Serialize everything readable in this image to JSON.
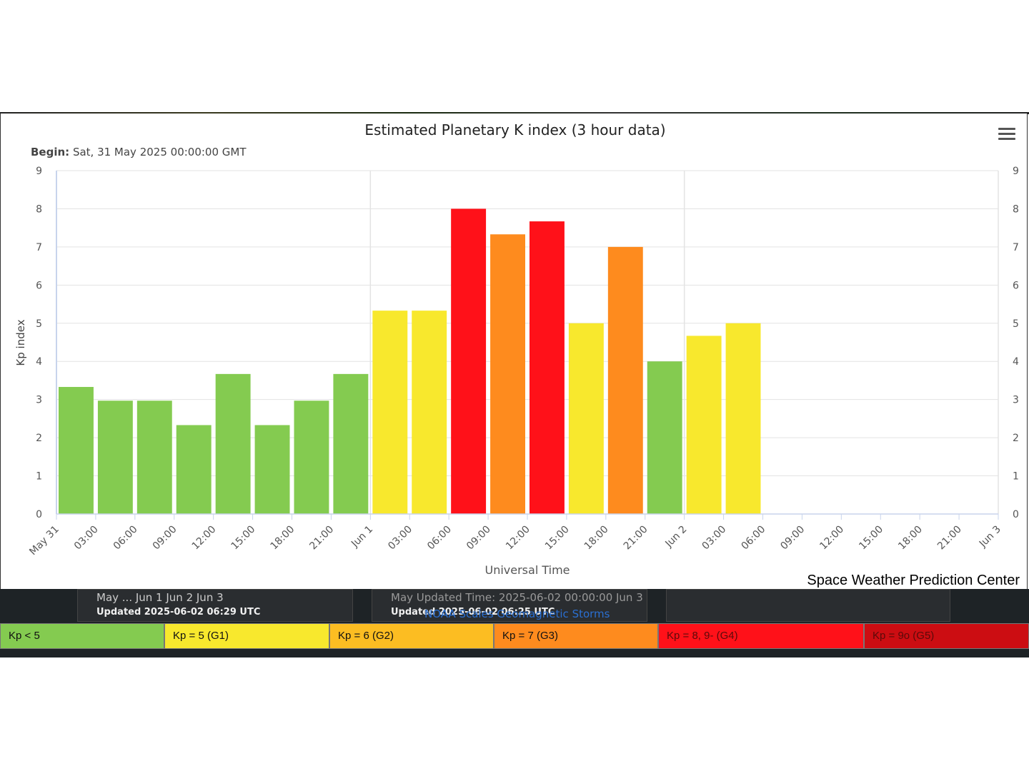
{
  "chart_data": {
    "type": "bar",
    "title": "Estimated Planetary K index (3 hour data)",
    "subtitle_label": "Begin:",
    "subtitle_value": " Sat, 31 May 2025 00:00:00 GMT",
    "ylabel": "Kp index",
    "xlabel": "Universal Time",
    "ylim": [
      0,
      9
    ],
    "yticks": [
      "0",
      "1",
      "2",
      "3",
      "4",
      "5",
      "6",
      "7",
      "8",
      "9"
    ],
    "xticks": [
      "May 31",
      "03:00",
      "06:00",
      "09:00",
      "12:00",
      "15:00",
      "18:00",
      "21:00",
      "Jun 1",
      "03:00",
      "06:00",
      "09:00",
      "12:00",
      "15:00",
      "18:00",
      "21:00",
      "Jun 2",
      "03:00",
      "06:00",
      "09:00",
      "12:00",
      "15:00",
      "18:00",
      "21:00",
      "Jun 3"
    ],
    "grid": true,
    "values": [
      3.33,
      2.97,
      2.97,
      2.33,
      3.67,
      2.33,
      2.97,
      3.67,
      5.33,
      5.33,
      8.0,
      7.33,
      7.67,
      5.0,
      7.0,
      4.0,
      4.67,
      5.0
    ],
    "colors": [
      "#84cb50",
      "#84cb50",
      "#84cb50",
      "#84cb50",
      "#84cb50",
      "#84cb50",
      "#84cb50",
      "#84cb50",
      "#f8e82d",
      "#f8e82d",
      "#ff1119",
      "#fe8b1e",
      "#ff1119",
      "#f8e82d",
      "#fe8b1e",
      "#84cb50",
      "#f8e82d",
      "#f8e82d"
    ],
    "credit": "Space Weather Prediction Center"
  },
  "background": {
    "panel1_dates": "May ...        Jun 1              Jun 2              Jun 3",
    "panel1_updated": "Updated 2025-06-02 06:29 UTC",
    "panel2_dates": "May        Updated Time: 2025-06-02 00:00:00    Jun 3",
    "panel2_updated": "Updated 2025-06-02 06:25 UTC",
    "link": "NOAA Scales Geomagnetic Storms"
  },
  "legend": [
    {
      "label": "Kp < 5",
      "color": "#84cb50"
    },
    {
      "label": "Kp = 5 (G1)",
      "color": "#f8e82d"
    },
    {
      "label": "Kp = 6 (G2)",
      "color": "#fcbd22"
    },
    {
      "label": "Kp = 7 (G3)",
      "color": "#fe8b1e"
    },
    {
      "label": "Kp = 8, 9- (G4)",
      "color": "#ff1119"
    },
    {
      "label": "Kp = 9o (G5)",
      "color": "#cc0d12"
    }
  ]
}
